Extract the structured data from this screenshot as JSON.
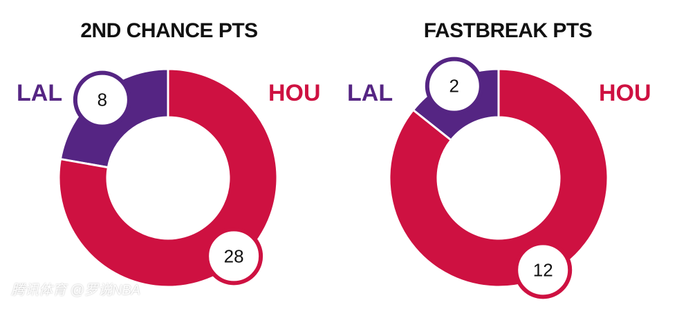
{
  "colors": {
    "away": "#552583",
    "home": "#CE1141",
    "label_bg": "#ffffff",
    "text": "#111111"
  },
  "watermark": "腾讯体育 @罗说NBA",
  "chart_data": [
    {
      "type": "pie",
      "title": "2ND CHANCE PTS",
      "teams": {
        "away": "LAL",
        "home": "HOU"
      },
      "categories": [
        "LAL",
        "HOU"
      ],
      "values": [
        8,
        28
      ]
    },
    {
      "type": "pie",
      "title": "FASTBREAK PTS",
      "teams": {
        "away": "LAL",
        "home": "HOU"
      },
      "categories": [
        "LAL",
        "HOU"
      ],
      "values": [
        2,
        12
      ]
    }
  ]
}
